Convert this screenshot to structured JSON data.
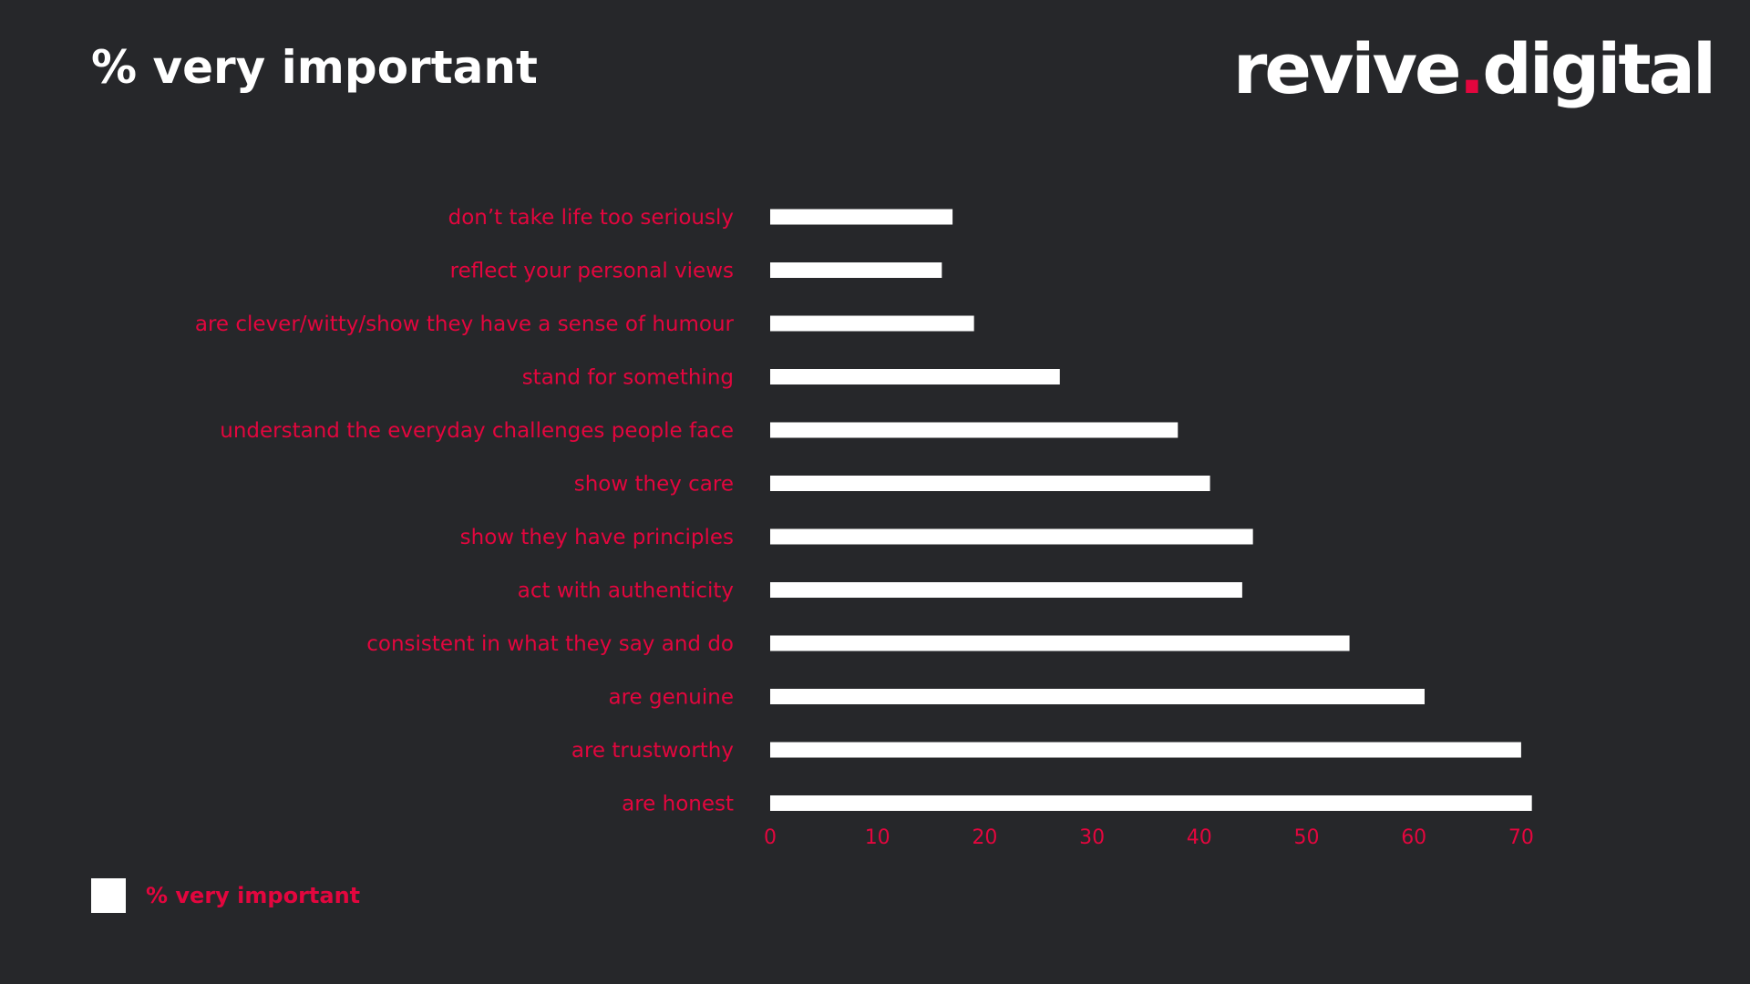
{
  "header": {
    "title": "% very important",
    "logo_main": "revive",
    "logo_dot": ".",
    "logo_tail": "digital"
  },
  "colors": {
    "background": "#26272a",
    "bar": "#ffffff",
    "accent": "#e3063e",
    "title": "#ffffff"
  },
  "legend": {
    "label": "% very important"
  },
  "chart_data": {
    "type": "bar",
    "orientation": "horizontal",
    "title": "% very important",
    "categories": [
      "don’t take life too seriously",
      "reflect your personal views",
      "are clever/witty/show they have a sense of humour",
      "stand for something",
      "understand the everyday challenges people face",
      "show they care",
      "show they have principles",
      "act with authenticity",
      "consistent in what they say and do",
      "are genuine",
      "are trustworthy",
      "are honest"
    ],
    "series": [
      {
        "name": "% very important",
        "values": [
          17,
          16,
          19,
          27,
          38,
          41,
          45,
          44,
          54,
          61,
          70,
          71
        ]
      }
    ],
    "xlim": [
      0,
      70
    ],
    "xticks": [
      0,
      10,
      20,
      30,
      40,
      50,
      60,
      70
    ],
    "grid": false,
    "legend_position": "bottom-left"
  }
}
